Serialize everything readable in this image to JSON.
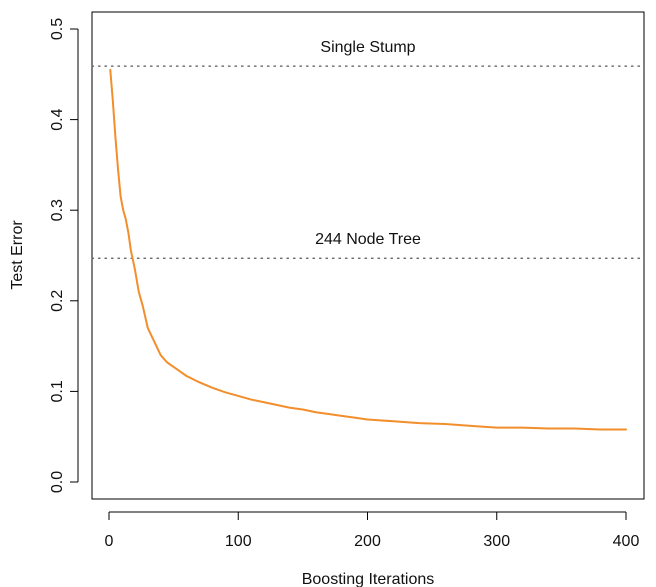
{
  "chart_data": {
    "type": "line",
    "title": "",
    "xlabel": "Boosting Iterations",
    "ylabel": "Test Error",
    "xlim": [
      0,
      400
    ],
    "ylim": [
      0,
      0.5
    ],
    "xticks": [
      0,
      100,
      200,
      300,
      400
    ],
    "xtick_labels": [
      "0",
      "100",
      "200",
      "300",
      "400"
    ],
    "yticks": [
      0.0,
      0.1,
      0.2,
      0.3,
      0.4,
      0.5
    ],
    "ytick_labels": [
      "0.0",
      "0.1",
      "0.2",
      "0.3",
      "0.4",
      "0.5"
    ],
    "grid": false,
    "legend": "none",
    "series": [
      {
        "color": "#f28e2b",
        "x": [
          1,
          3,
          5,
          7,
          9,
          11,
          13,
          15,
          17,
          20,
          23,
          26,
          30,
          35,
          40,
          45,
          50,
          55,
          60,
          70,
          80,
          90,
          100,
          110,
          120,
          130,
          140,
          150,
          160,
          170,
          180,
          190,
          200,
          220,
          240,
          260,
          280,
          300,
          320,
          340,
          360,
          380,
          400
        ],
        "y": [
          0.455,
          0.42,
          0.38,
          0.345,
          0.315,
          0.3,
          0.29,
          0.275,
          0.255,
          0.235,
          0.21,
          0.195,
          0.17,
          0.155,
          0.14,
          0.132,
          0.127,
          0.122,
          0.117,
          0.11,
          0.104,
          0.099,
          0.095,
          0.091,
          0.088,
          0.085,
          0.082,
          0.08,
          0.077,
          0.075,
          0.073,
          0.071,
          0.069,
          0.067,
          0.065,
          0.064,
          0.062,
          0.06,
          0.06,
          0.059,
          0.059,
          0.058,
          0.058
        ]
      }
    ],
    "reference_lines": [
      {
        "y": 0.459,
        "label": "Single Stump",
        "color": "#555555",
        "style": "dotted"
      },
      {
        "y": 0.247,
        "label": "244 Node Tree",
        "color": "#555555",
        "style": "dotted"
      }
    ]
  }
}
